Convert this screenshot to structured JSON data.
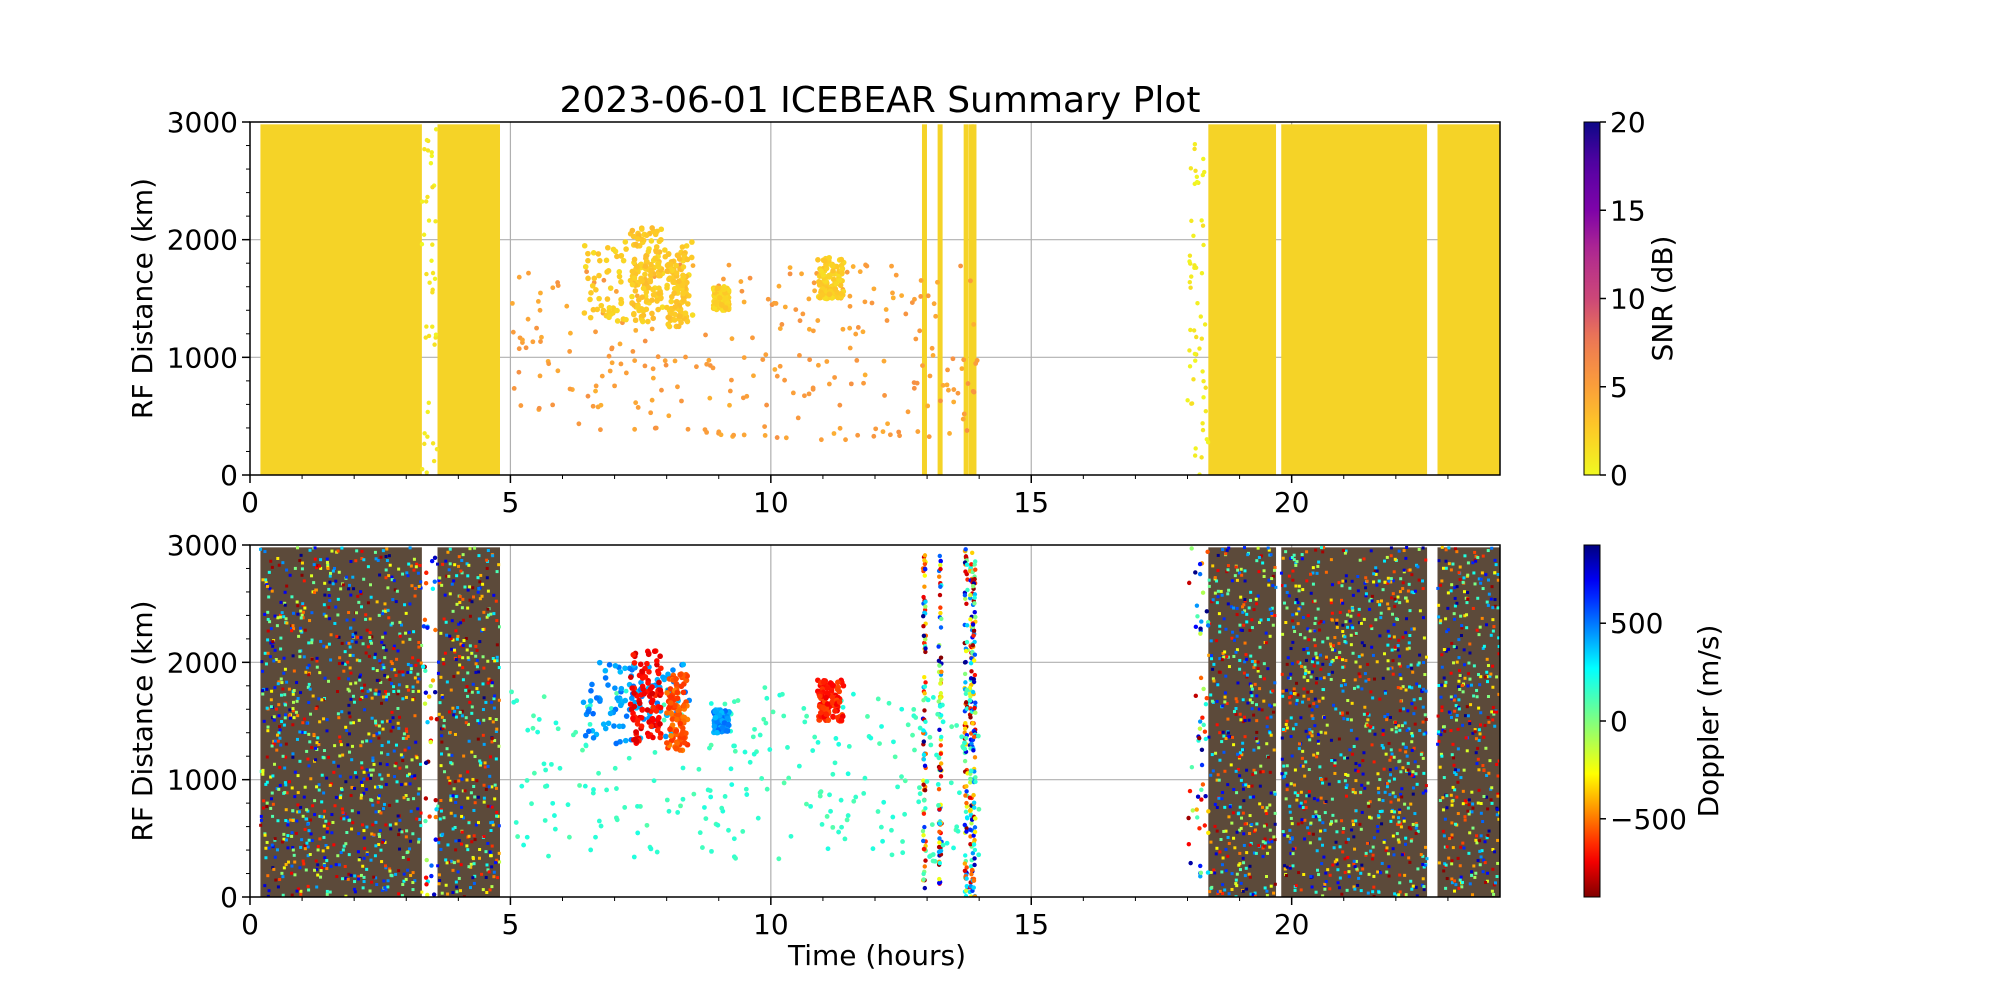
{
  "chart_data": {
    "title": "2023-06-01 ICEBEAR Summary Plot",
    "panels": [
      {
        "type": "scatter",
        "ylabel": "RF Distance (km)",
        "xlabel": "",
        "xlim": [
          0,
          24
        ],
        "ylim": [
          0,
          3000
        ],
        "xticks": [
          "0",
          "5",
          "10",
          "15",
          "20"
        ],
        "yticks": [
          "0",
          "1000",
          "2000",
          "3000"
        ],
        "grid": true,
        "color_variable": "SNR",
        "colorbar": {
          "label": "SNR (dB)",
          "range": [
            0,
            20
          ],
          "ticks": [
            "0",
            "5",
            "10",
            "15",
            "20"
          ],
          "colormap": "plasma_r"
        }
      },
      {
        "type": "scatter",
        "ylabel": "RF Distance (km)",
        "xlabel": "Time (hours)",
        "xlim": [
          0,
          24
        ],
        "ylim": [
          0,
          3000
        ],
        "xticks": [
          "0",
          "5",
          "10",
          "15",
          "20"
        ],
        "yticks": [
          "0",
          "1000",
          "2000",
          "3000"
        ],
        "grid": true,
        "color_variable": "Doppler",
        "colorbar": {
          "label": "Doppler (m/s)",
          "range": [
            -900,
            900
          ],
          "ticks": [
            "−500",
            "0",
            "500"
          ],
          "tick_values": [
            -500,
            0,
            500
          ],
          "colormap": "jet_r"
        }
      }
    ],
    "dense_noise_bands_hours": [
      [
        0.2,
        3.3
      ],
      [
        3.6,
        4.8
      ],
      [
        18.4,
        19.7
      ],
      [
        19.8,
        22.6
      ],
      [
        22.8,
        24.0
      ]
    ],
    "sparse_noise_bands_hours": [
      [
        3.3,
        3.6
      ],
      [
        18.0,
        18.4
      ]
    ],
    "vertical_streaks_hours": [
      12.95,
      13.25,
      13.75,
      13.85,
      13.9
    ],
    "echo_clusters": [
      {
        "t_range": [
          6.4,
          8.5
        ],
        "r_range": [
          1300,
          2000
        ],
        "snr": 1.5,
        "doppler": 450
      },
      {
        "t_range": [
          7.3,
          7.9
        ],
        "r_range": [
          1300,
          2100
        ],
        "snr": 2.0,
        "doppler": -700
      },
      {
        "t_range": [
          8.0,
          8.4
        ],
        "r_range": [
          1250,
          1900
        ],
        "snr": 2.0,
        "doppler": -550
      },
      {
        "t_range": [
          8.9,
          9.2
        ],
        "r_range": [
          1400,
          1600
        ],
        "snr": 1.5,
        "doppler": 450
      },
      {
        "t_range": [
          10.9,
          11.4
        ],
        "r_range": [
          1500,
          1850
        ],
        "snr": 1.5,
        "doppler": -650
      }
    ],
    "scattered_echoes": {
      "t_range": [
        5.0,
        14.0
      ],
      "r_range": [
        300,
        1800
      ],
      "snr": 5,
      "doppler": 150,
      "count": 260
    }
  }
}
